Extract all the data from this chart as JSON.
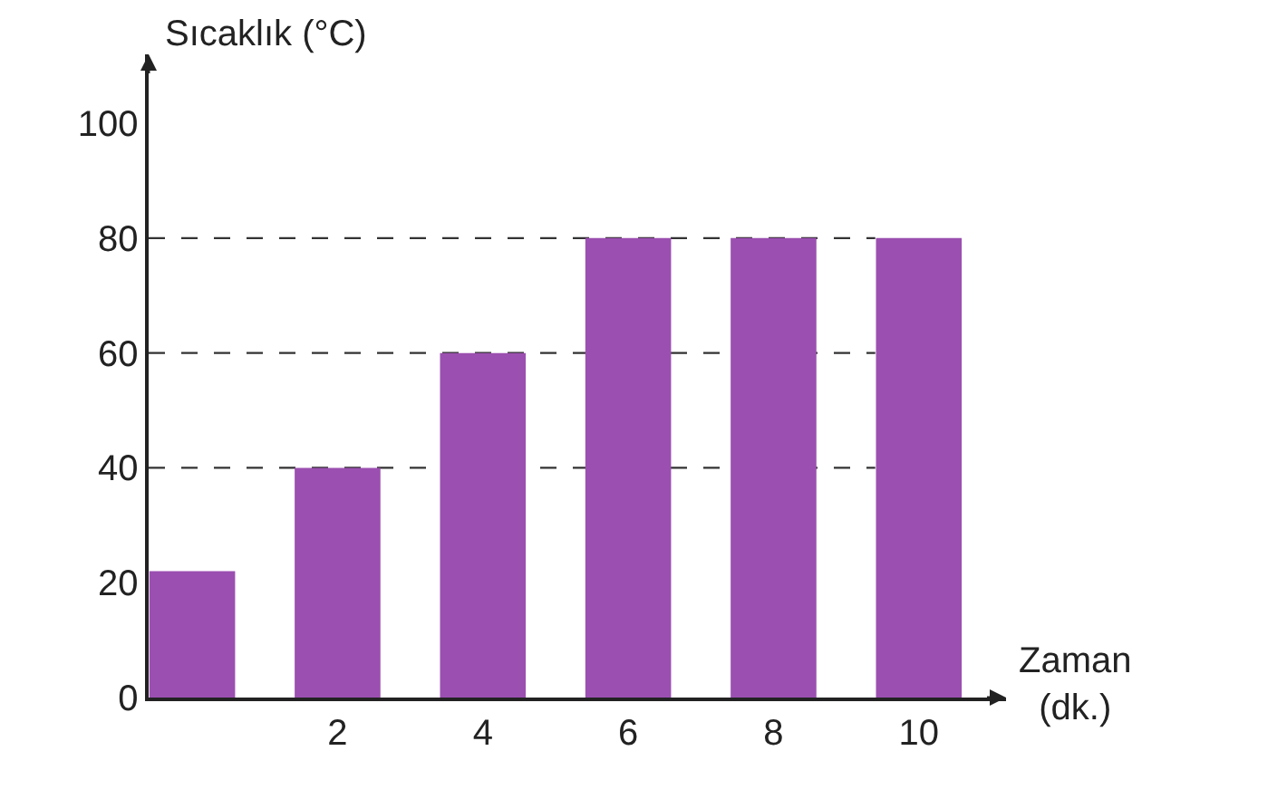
{
  "chart_data": {
    "type": "bar",
    "xlabel": "Zaman (dk.)",
    "ylabel": "Sıcaklık (°C)",
    "categories": [
      null,
      "2",
      "4",
      "6",
      "8",
      "10"
    ],
    "values": [
      22,
      40,
      60,
      80,
      80,
      80
    ],
    "color": "#9b4fb0",
    "ylim": [
      0,
      112
    ],
    "yticks": [
      0,
      20,
      40,
      60,
      80,
      100
    ],
    "grid": false,
    "ref_lines": [
      {
        "axis": "y",
        "value": 40,
        "line_style": "dashed",
        "color": "#333333"
      },
      {
        "axis": "y",
        "value": 60,
        "line_style": "dashed",
        "color": "#333333"
      },
      {
        "axis": "y",
        "value": 80,
        "line_style": "dashed",
        "color": "#333333"
      }
    ]
  }
}
